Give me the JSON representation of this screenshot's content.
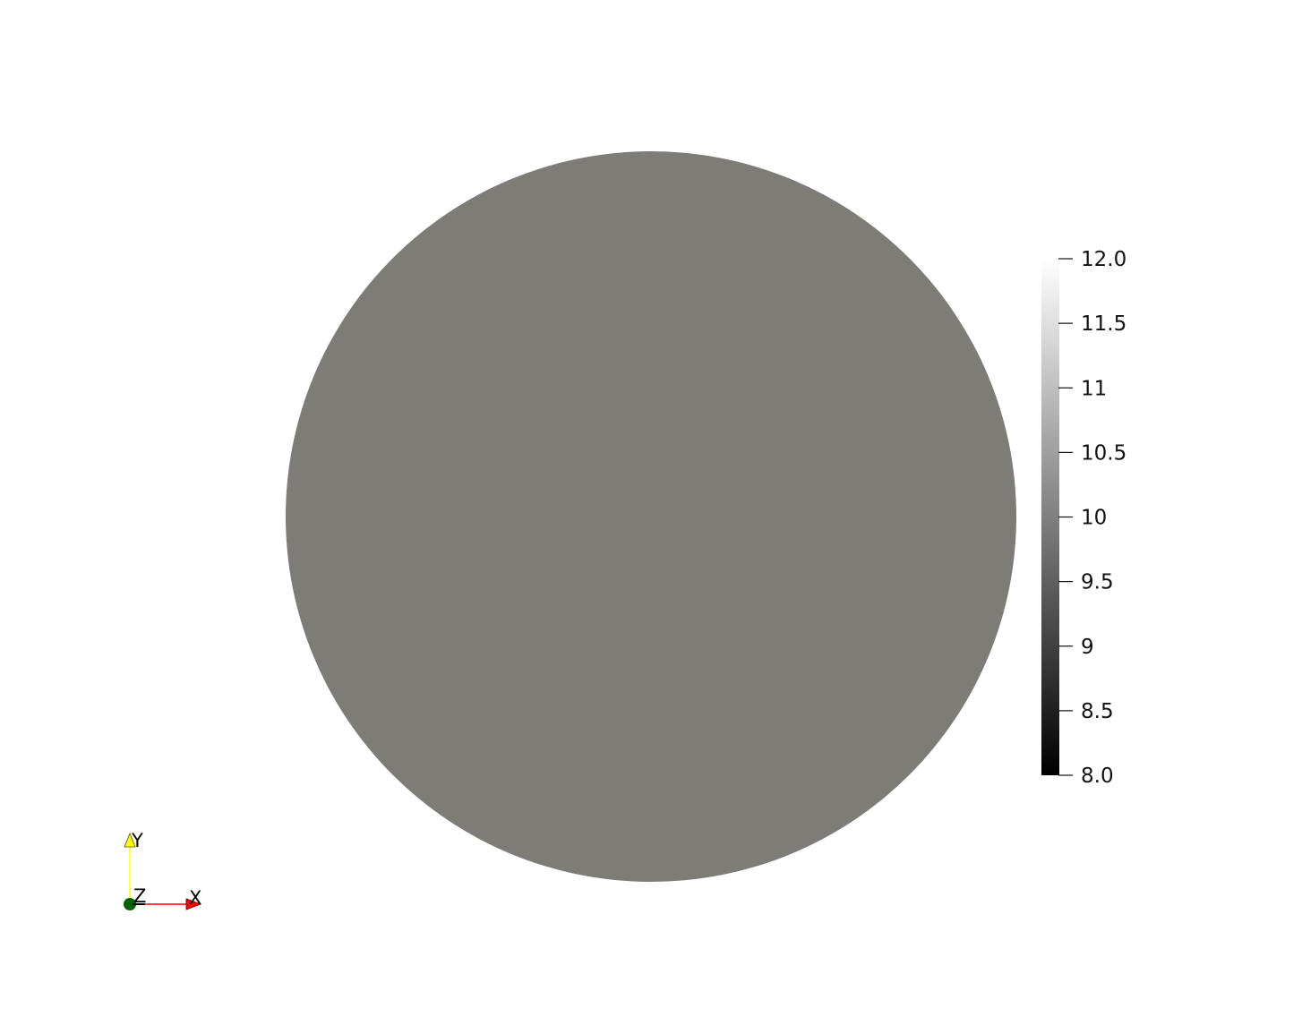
{
  "scene": {
    "background_color": "#ffffff",
    "surface_color": "#7d7c77",
    "shape": "disk"
  },
  "color_bar": {
    "colormap": "grayscale",
    "range": [
      8.0,
      12.0
    ],
    "ticks": [
      {
        "value": 12.0,
        "label": "12.0"
      },
      {
        "value": 11.5,
        "label": "11.5"
      },
      {
        "value": 11.0,
        "label": "11"
      },
      {
        "value": 10.5,
        "label": "10.5"
      },
      {
        "value": 10.0,
        "label": "10"
      },
      {
        "value": 9.5,
        "label": "9.5"
      },
      {
        "value": 9.0,
        "label": "9"
      },
      {
        "value": 8.5,
        "label": "8.5"
      },
      {
        "value": 8.0,
        "label": "8.0"
      }
    ],
    "min_color": "#000000",
    "max_color": "#ffffff"
  },
  "orientation_axes": {
    "x": {
      "label": "X",
      "color": "#ff0000"
    },
    "y": {
      "label": "Y",
      "color": "#ffff00"
    },
    "z": {
      "label": "Z",
      "color": "#006400"
    }
  }
}
